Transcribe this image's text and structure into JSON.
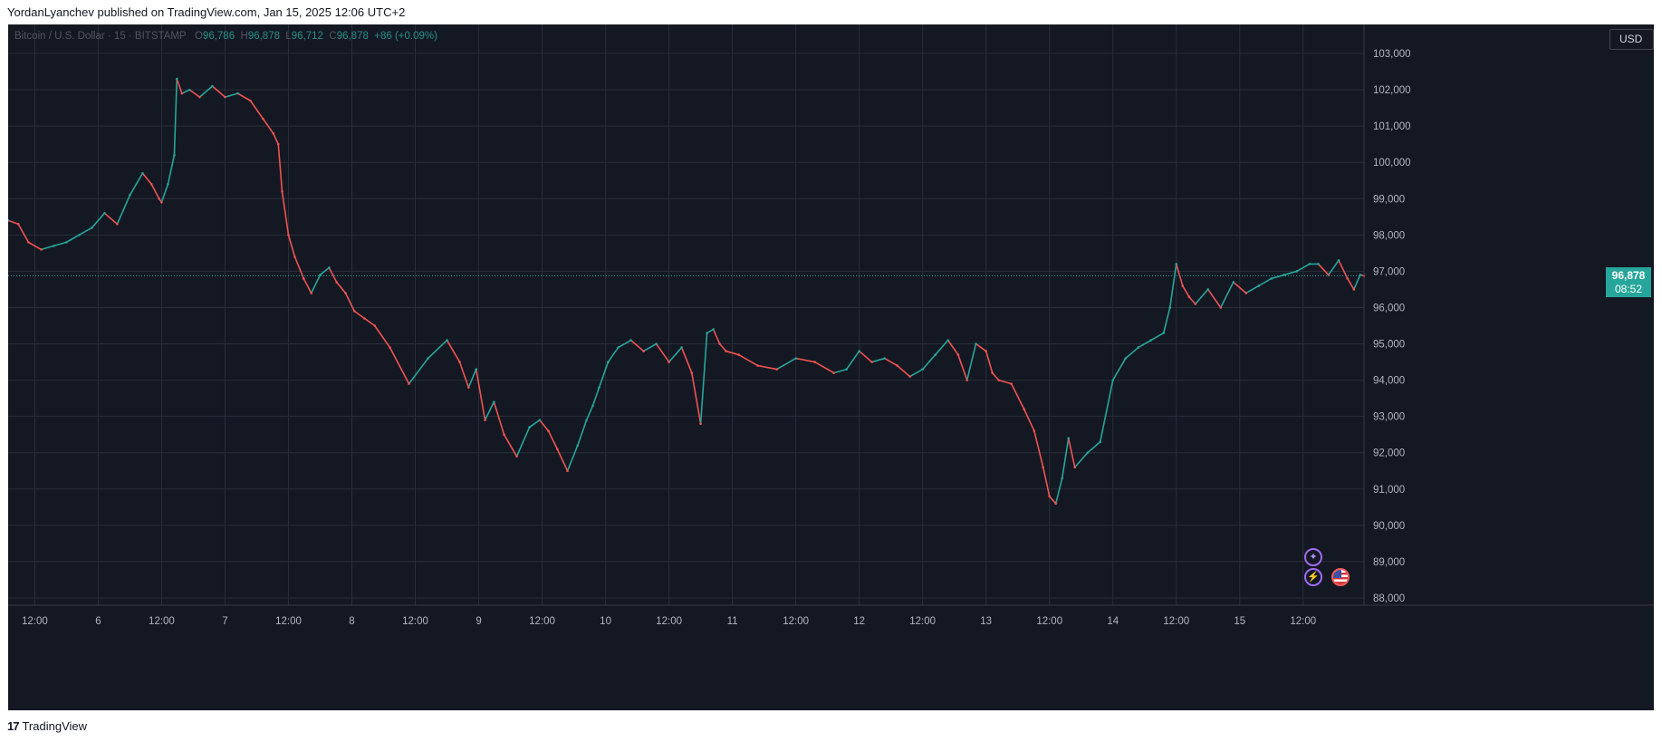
{
  "header": {
    "published_text": "YordanLyanchev published on TradingView.com, Jan 15, 2025 12:06 UTC+2"
  },
  "legend": {
    "symbol": "Bitcoin / U.S. Dollar · 15 · BITSTAMP",
    "open_label": "O",
    "open_value": "96,786",
    "high_label": "H",
    "high_value": "96,878",
    "low_label": "L",
    "low_value": "96,712",
    "close_label": "C",
    "close_value": "96,878",
    "change": "+86 (+0.09%)"
  },
  "currency": "USD",
  "last_price": {
    "price": "96,878",
    "countdown": "08:52"
  },
  "footer": {
    "brand": "TradingView",
    "logo_text": "17"
  },
  "colors": {
    "background": "#141823",
    "grid": "#2a2e39",
    "up": "#26a69a",
    "down": "#ef5350",
    "text": "#b2b5be",
    "event_icon": "#9c6bf0"
  },
  "icons": [
    "star-event-icon",
    "lightning-event-icon",
    "us-flag-icon",
    "tradingview-logo-icon"
  ],
  "chart_data": {
    "type": "line",
    "symbol": "Bitcoin / U.S. Dollar",
    "interval": "15",
    "exchange": "BITSTAMP",
    "ylim": [
      87800,
      103800
    ],
    "y_ticks": [
      88000,
      89000,
      90000,
      91000,
      92000,
      93000,
      94000,
      95000,
      96000,
      97000,
      98000,
      99000,
      100000,
      101000,
      102000,
      103000
    ],
    "y_tick_labels": [
      "88,000",
      "89,000",
      "90,000",
      "91,000",
      "92,000",
      "93,000",
      "94,000",
      "95,000",
      "96,000",
      "97,000",
      "98,000",
      "99,000",
      "100,000",
      "101,000",
      "102,000",
      "103,000"
    ],
    "x_ticks": [
      "12:00",
      "6",
      "12:00",
      "7",
      "12:00",
      "8",
      "12:00",
      "9",
      "12:00",
      "10",
      "12:00",
      "11",
      "12:00",
      "12",
      "12:00",
      "13",
      "12:00",
      "14",
      "12:00",
      "15",
      "12:00"
    ],
    "x_tick_values": [
      -0.5,
      0,
      0.5,
      1,
      1.5,
      2,
      2.5,
      3,
      3.5,
      4,
      4.5,
      5,
      5.5,
      6,
      6.5,
      7,
      7.5,
      8,
      8.5,
      9,
      9.5
    ],
    "x_range": [
      -0.71,
      9.98
    ],
    "grid": true,
    "last_price": 96878,
    "series": [
      {
        "x": [
          -0.71,
          -0.63,
          -0.55,
          -0.45,
          -0.35,
          -0.25,
          -0.15,
          -0.05,
          0.05,
          0.15,
          0.25,
          0.35,
          0.42,
          0.48,
          0.5,
          0.55,
          0.6,
          0.62,
          0.66,
          0.72,
          0.8,
          0.9,
          1.0,
          1.1,
          1.2,
          1.3,
          1.38,
          1.42,
          1.45,
          1.5,
          1.55,
          1.62,
          1.68,
          1.75,
          1.82,
          1.88,
          1.95,
          2.02,
          2.1,
          2.18,
          2.3,
          2.45,
          2.6,
          2.75,
          2.85,
          2.92,
          2.98,
          3.05,
          3.12,
          3.2,
          3.3,
          3.4,
          3.48,
          3.55,
          3.62,
          3.7,
          3.78,
          3.85,
          3.9,
          3.95,
          4.02,
          4.1,
          4.2,
          4.3,
          4.4,
          4.5,
          4.6,
          4.68,
          4.75,
          4.8,
          4.85,
          4.9,
          4.95,
          5.05,
          5.2,
          5.35,
          5.5,
          5.65,
          5.8,
          5.9,
          6.0,
          6.1,
          6.2,
          6.3,
          6.4,
          6.5,
          6.6,
          6.7,
          6.78,
          6.85,
          6.92,
          7.0,
          7.05,
          7.1,
          7.2,
          7.3,
          7.38,
          7.45,
          7.5,
          7.55,
          7.6,
          7.65,
          7.7,
          7.8,
          7.9,
          8.0,
          8.1,
          8.2,
          8.3,
          8.4,
          8.45,
          8.5,
          8.55,
          8.6,
          8.65,
          8.75,
          8.85,
          8.95,
          9.05,
          9.15,
          9.25,
          9.35,
          9.45,
          9.55,
          9.62,
          9.7,
          9.78,
          9.85,
          9.9,
          9.95,
          9.98
        ],
        "values": [
          98400,
          98300,
          97800,
          97600,
          97700,
          97800,
          98000,
          98200,
          98600,
          98300,
          99100,
          99700,
          99400,
          99000,
          98900,
          99400,
          100200,
          102300,
          101900,
          102000,
          101800,
          102100,
          101800,
          101900,
          101700,
          101200,
          100800,
          100500,
          99200,
          98000,
          97400,
          96800,
          96400,
          96900,
          97100,
          96700,
          96400,
          95900,
          95700,
          95500,
          94900,
          93900,
          94600,
          95100,
          94500,
          93800,
          94300,
          92900,
          93400,
          92500,
          91900,
          92700,
          92900,
          92600,
          92100,
          91500,
          92200,
          92900,
          93300,
          93800,
          94500,
          94900,
          95100,
          94800,
          95000,
          94500,
          94900,
          94200,
          92800,
          95300,
          95400,
          95000,
          94800,
          94700,
          94400,
          94300,
          94600,
          94500,
          94200,
          94300,
          94800,
          94500,
          94600,
          94400,
          94100,
          94300,
          94700,
          95100,
          94700,
          94000,
          95000,
          94800,
          94200,
          94000,
          93900,
          93200,
          92600,
          91600,
          90800,
          90600,
          91300,
          92400,
          91600,
          92000,
          92300,
          94000,
          94600,
          94900,
          95100,
          95300,
          96000,
          97200,
          96600,
          96300,
          96100,
          96500,
          96000,
          96700,
          96400,
          96600,
          96800,
          96900,
          97000,
          97200,
          97200,
          96900,
          97300,
          96800,
          96500,
          96900,
          96878
        ]
      }
    ]
  }
}
